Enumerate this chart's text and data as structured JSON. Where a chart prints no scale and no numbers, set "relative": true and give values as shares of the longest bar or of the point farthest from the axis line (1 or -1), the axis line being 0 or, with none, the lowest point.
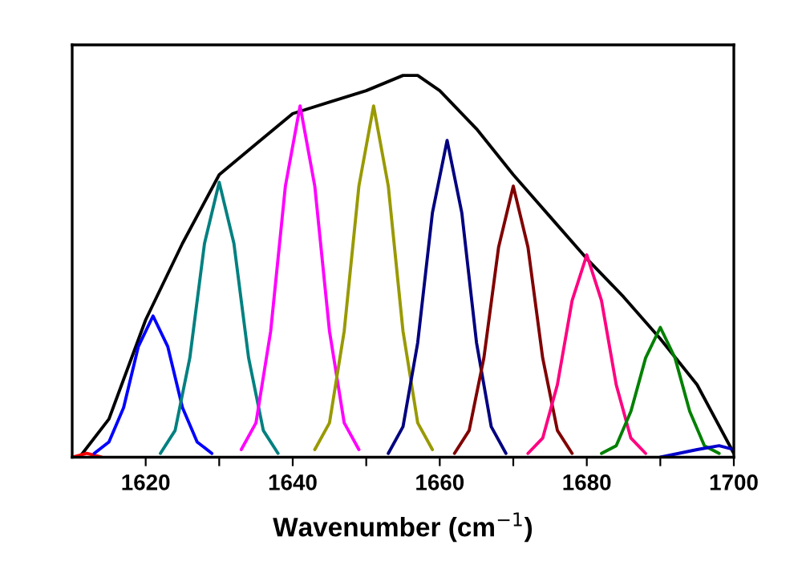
{
  "chart_data": {
    "type": "line",
    "relative": true,
    "xlabel": "Wavenumber (cm$^{−1}$)",
    "xlim": [
      1610,
      1700
    ],
    "xticks": [
      1620,
      {
        "value": 1630,
        "label": null
      },
      1640,
      {
        "value": 1650,
        "label": null
      },
      1660,
      {
        "value": 1670,
        "label": null
      },
      1680,
      {
        "value": 1690,
        "label": null
      },
      1700
    ],
    "tick_labels": "x",
    "grid": false,
    "series": [
      {
        "color": "#000000",
        "x": [
          1611,
          1615,
          1620,
          1625,
          1630,
          1635,
          1640,
          1645,
          1650,
          1655,
          1657,
          1660,
          1665,
          1670,
          1675,
          1680,
          1685,
          1690,
          1695,
          1700
        ],
        "values": [
          0.0,
          0.1,
          0.36,
          0.56,
          0.74,
          0.82,
          0.9,
          0.93,
          0.96,
          1.0,
          1.0,
          0.96,
          0.86,
          0.74,
          0.63,
          0.52,
          0.42,
          0.31,
          0.19,
          0.01
        ]
      },
      {
        "color": "#ff0000",
        "x": [
          1610,
          1612,
          1614
        ],
        "values": [
          0.0,
          0.01,
          0.0
        ]
      },
      {
        "color": "#0000ff",
        "x": [
          1613,
          1615,
          1617,
          1619,
          1621,
          1623,
          1625,
          1627,
          1629
        ],
        "values": [
          0.01,
          0.04,
          0.13,
          0.29,
          0.37,
          0.29,
          0.13,
          0.04,
          0.01
        ]
      },
      {
        "color": "#008080",
        "x": [
          1622,
          1624,
          1626,
          1628,
          1630,
          1632,
          1634,
          1636,
          1638
        ],
        "values": [
          0.01,
          0.07,
          0.26,
          0.56,
          0.72,
          0.56,
          0.26,
          0.07,
          0.01
        ]
      },
      {
        "color": "#ff00ff",
        "x": [
          1633,
          1635,
          1637,
          1639,
          1641,
          1643,
          1645,
          1647,
          1649
        ],
        "values": [
          0.02,
          0.09,
          0.33,
          0.71,
          0.92,
          0.71,
          0.33,
          0.09,
          0.02
        ]
      },
      {
        "color": "#999900",
        "x": [
          1643,
          1645,
          1647,
          1649,
          1651,
          1653,
          1655,
          1657,
          1659
        ],
        "values": [
          0.02,
          0.09,
          0.33,
          0.71,
          0.92,
          0.71,
          0.33,
          0.09,
          0.02
        ]
      },
      {
        "color": "#000080",
        "x": [
          1653,
          1655,
          1657,
          1659,
          1661,
          1663,
          1665,
          1667,
          1669
        ],
        "values": [
          0.01,
          0.08,
          0.3,
          0.64,
          0.83,
          0.64,
          0.3,
          0.08,
          0.01
        ]
      },
      {
        "color": "#800000",
        "x": [
          1662,
          1664,
          1666,
          1668,
          1670,
          1672,
          1674,
          1676,
          1678
        ],
        "values": [
          0.01,
          0.07,
          0.26,
          0.55,
          0.71,
          0.55,
          0.26,
          0.07,
          0.01
        ]
      },
      {
        "color": "#ff0080",
        "x": [
          1672,
          1674,
          1676,
          1678,
          1680,
          1682,
          1684,
          1686,
          1688
        ],
        "values": [
          0.01,
          0.05,
          0.19,
          0.41,
          0.53,
          0.41,
          0.19,
          0.05,
          0.01
        ]
      },
      {
        "color": "#008000",
        "x": [
          1682,
          1684,
          1686,
          1688,
          1690,
          1692,
          1694,
          1696,
          1698
        ],
        "values": [
          0.01,
          0.03,
          0.12,
          0.26,
          0.34,
          0.26,
          0.12,
          0.03,
          0.01
        ]
      },
      {
        "color": "#0000cc",
        "x": [
          1690,
          1695,
          1698,
          1700
        ],
        "values": [
          0.0,
          0.02,
          0.03,
          0.02
        ]
      }
    ]
  }
}
